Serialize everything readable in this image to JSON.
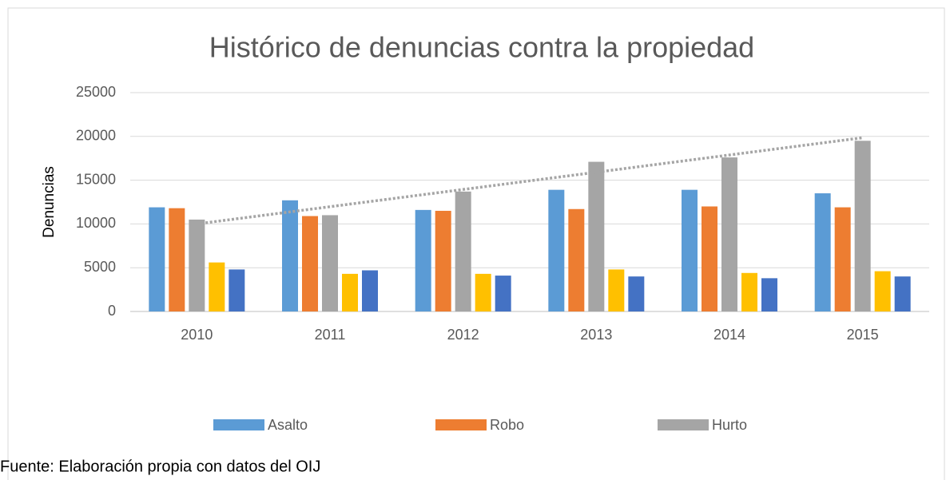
{
  "chart_data": {
    "type": "bar",
    "title": "Histórico de denuncias contra la propiedad",
    "y_label": "Denuncias",
    "categories": [
      "2010",
      "2011",
      "2012",
      "2013",
      "2014",
      "2015"
    ],
    "series": [
      {
        "name": "Asalto",
        "color": "#5b9bd5",
        "values": [
          11900,
          12700,
          11600,
          13900,
          13900,
          13500
        ]
      },
      {
        "name": "Robo",
        "color": "#ed7d31",
        "values": [
          11800,
          10900,
          11500,
          11700,
          12000,
          11900
        ]
      },
      {
        "name": "Hurto",
        "color": "#a5a5a5",
        "values": [
          10500,
          11000,
          13700,
          17100,
          17600,
          19500
        ]
      },
      {
        "color": "#ffc000",
        "values": [
          5600,
          4300,
          4300,
          4800,
          4400,
          4600
        ]
      },
      {
        "color": "#4472c4",
        "values": [
          4800,
          4700,
          4100,
          4000,
          3800,
          4000
        ]
      }
    ],
    "trendline": {
      "color": "#a5a5a5",
      "values": [
        10000,
        19850
      ]
    },
    "ylim": [
      0,
      25000
    ],
    "yticks": [
      0,
      5000,
      10000,
      15000,
      20000,
      25000
    ],
    "grid": true,
    "legend": "bottom",
    "source": "Fuente: Elaboración propia con datos del OIJ"
  }
}
